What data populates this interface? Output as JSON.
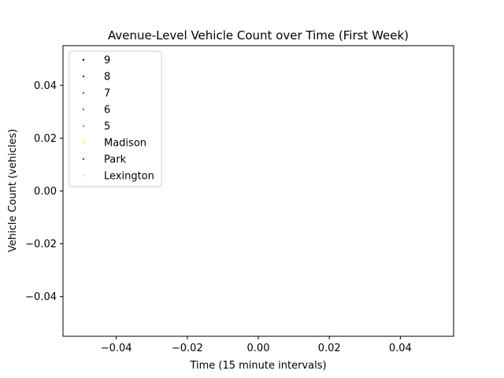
{
  "chart_data": {
    "type": "scatter",
    "title": "Avenue-Level Vehicle Count over Time (First Week)",
    "xlabel": "Time (15 minute intervals)",
    "ylabel": "Vehicle Count (vehicles)",
    "xlim": [
      -0.055,
      0.055
    ],
    "ylim": [
      -0.055,
      0.055
    ],
    "xticks": [
      -0.04,
      -0.02,
      0.0,
      0.02,
      0.04
    ],
    "xtick_labels": [
      "−0.04",
      "−0.02",
      "0.00",
      "0.02",
      "0.04"
    ],
    "yticks": [
      -0.04,
      -0.02,
      0.0,
      0.02,
      0.04
    ],
    "ytick_labels": [
      "−0.04",
      "−0.02",
      "0.00",
      "0.02",
      "0.04"
    ],
    "grid": false,
    "legend_position": "top-left",
    "series": [
      {
        "name": "9",
        "color": "#000000",
        "x": [],
        "y": []
      },
      {
        "name": "8",
        "color": "#2b1f8c",
        "x": [],
        "y": []
      },
      {
        "name": "7",
        "color": "#1f8fd8",
        "x": [],
        "y": []
      },
      {
        "name": "6",
        "color": "#169a8c",
        "x": [],
        "y": []
      },
      {
        "name": "5",
        "color": "#3fd43f",
        "x": [],
        "y": []
      },
      {
        "name": "Madison",
        "color": "#e8e81a",
        "x": [],
        "y": []
      },
      {
        "name": "Park",
        "color": "#e8161a",
        "x": [],
        "y": []
      },
      {
        "name": "Lexington",
        "color": "#d9d9d9",
        "x": [],
        "y": []
      }
    ]
  }
}
